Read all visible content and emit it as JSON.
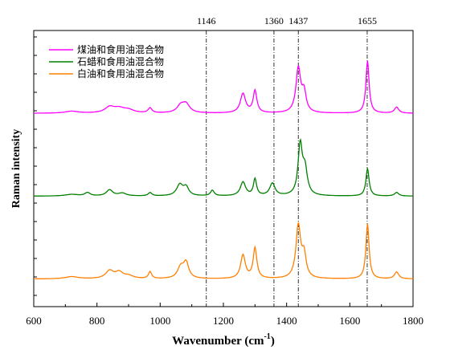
{
  "chart_data": {
    "type": "line",
    "title": "",
    "xlabel": "Wavenumber (cm",
    "xlabel_sup": "-1",
    "xlabel_close": ")",
    "ylabel": "Raman intensity",
    "xlim": [
      600,
      1800
    ],
    "x_ticks": [
      600,
      800,
      1000,
      1200,
      1400,
      1600,
      1800
    ],
    "y_ticks_shown": false,
    "grid": false,
    "legend_position": "top-left",
    "vertical_markers": [
      {
        "x": 1146,
        "label": "1146"
      },
      {
        "x": 1360,
        "label": "1360"
      },
      {
        "x": 1437,
        "label": "1437"
      },
      {
        "x": 1655,
        "label": "1655"
      }
    ],
    "series": [
      {
        "name": "煤油和食用油混合物",
        "color": "#ff00ff",
        "baseline": 0.7,
        "peaks": [
          [
            720,
            0.007,
            25
          ],
          [
            840,
            0.02,
            18
          ],
          [
            870,
            0.016,
            22
          ],
          [
            900,
            0.01,
            20
          ],
          [
            968,
            0.018,
            7
          ],
          [
            1065,
            0.025,
            14
          ],
          [
            1082,
            0.03,
            14
          ],
          [
            1262,
            0.07,
            10
          ],
          [
            1300,
            0.08,
            7
          ],
          [
            1437,
            0.16,
            9
          ],
          [
            1455,
            0.07,
            8
          ],
          [
            1656,
            0.19,
            6
          ],
          [
            1748,
            0.022,
            8
          ]
        ]
      },
      {
        "name": "石蜡和食用油混合物",
        "color": "#008000",
        "baseline": 0.4,
        "peaks": [
          [
            720,
            0.006,
            25
          ],
          [
            770,
            0.012,
            10
          ],
          [
            840,
            0.022,
            12
          ],
          [
            880,
            0.01,
            15
          ],
          [
            968,
            0.012,
            7
          ],
          [
            1062,
            0.04,
            12
          ],
          [
            1082,
            0.03,
            10
          ],
          [
            1165,
            0.02,
            7
          ],
          [
            1262,
            0.05,
            10
          ],
          [
            1300,
            0.06,
            6
          ],
          [
            1355,
            0.045,
            10
          ],
          [
            1443,
            0.18,
            8
          ],
          [
            1458,
            0.09,
            9
          ],
          [
            1656,
            0.1,
            6
          ],
          [
            1748,
            0.013,
            8
          ]
        ]
      },
      {
        "name": "白油和食用油混合物",
        "color": "#ff8000",
        "baseline": 0.1,
        "peaks": [
          [
            720,
            0.008,
            25
          ],
          [
            840,
            0.028,
            15
          ],
          [
            870,
            0.022,
            15
          ],
          [
            900,
            0.01,
            18
          ],
          [
            968,
            0.025,
            6
          ],
          [
            1065,
            0.04,
            12
          ],
          [
            1082,
            0.055,
            10
          ],
          [
            1262,
            0.085,
            9
          ],
          [
            1300,
            0.11,
            7
          ],
          [
            1437,
            0.19,
            9
          ],
          [
            1455,
            0.08,
            8
          ],
          [
            1656,
            0.2,
            6
          ],
          [
            1748,
            0.025,
            8
          ]
        ]
      }
    ]
  }
}
